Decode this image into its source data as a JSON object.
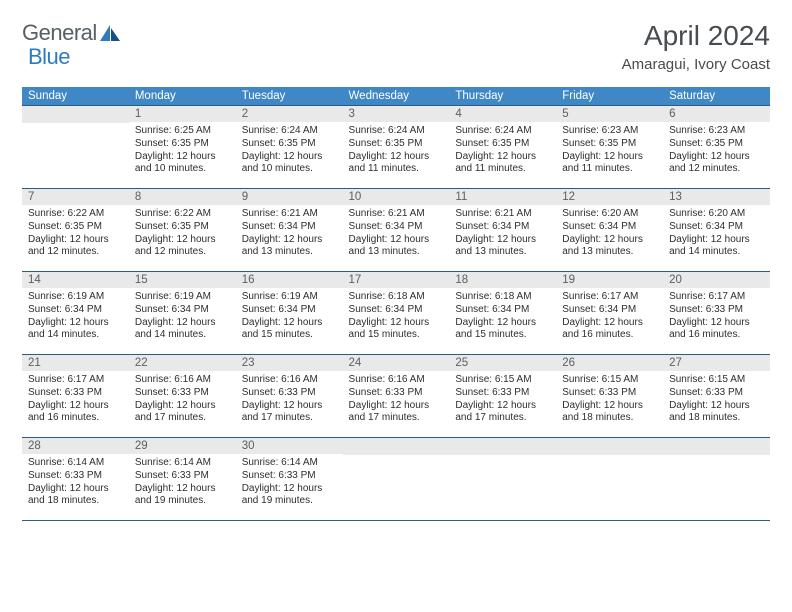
{
  "brand": {
    "word1": "General",
    "word2": "Blue"
  },
  "title": "April 2024",
  "location": "Amaragui, Ivory Coast",
  "colors": {
    "header_bg": "#3f88c5",
    "header_border": "#2a5a86",
    "daynum_bg": "#e9e9e9",
    "page_bg": "#ffffff",
    "title_color": "#474c50",
    "logo_gray": "#576064",
    "logo_blue": "#2f7bbf"
  },
  "weekdays": [
    "Sunday",
    "Monday",
    "Tuesday",
    "Wednesday",
    "Thursday",
    "Friday",
    "Saturday"
  ],
  "weeks": [
    [
      {
        "n": "",
        "sr": "",
        "ss": "",
        "dl": ""
      },
      {
        "n": "1",
        "sr": "Sunrise: 6:25 AM",
        "ss": "Sunset: 6:35 PM",
        "dl": "Daylight: 12 hours and 10 minutes."
      },
      {
        "n": "2",
        "sr": "Sunrise: 6:24 AM",
        "ss": "Sunset: 6:35 PM",
        "dl": "Daylight: 12 hours and 10 minutes."
      },
      {
        "n": "3",
        "sr": "Sunrise: 6:24 AM",
        "ss": "Sunset: 6:35 PM",
        "dl": "Daylight: 12 hours and 11 minutes."
      },
      {
        "n": "4",
        "sr": "Sunrise: 6:24 AM",
        "ss": "Sunset: 6:35 PM",
        "dl": "Daylight: 12 hours and 11 minutes."
      },
      {
        "n": "5",
        "sr": "Sunrise: 6:23 AM",
        "ss": "Sunset: 6:35 PM",
        "dl": "Daylight: 12 hours and 11 minutes."
      },
      {
        "n": "6",
        "sr": "Sunrise: 6:23 AM",
        "ss": "Sunset: 6:35 PM",
        "dl": "Daylight: 12 hours and 12 minutes."
      }
    ],
    [
      {
        "n": "7",
        "sr": "Sunrise: 6:22 AM",
        "ss": "Sunset: 6:35 PM",
        "dl": "Daylight: 12 hours and 12 minutes."
      },
      {
        "n": "8",
        "sr": "Sunrise: 6:22 AM",
        "ss": "Sunset: 6:35 PM",
        "dl": "Daylight: 12 hours and 12 minutes."
      },
      {
        "n": "9",
        "sr": "Sunrise: 6:21 AM",
        "ss": "Sunset: 6:34 PM",
        "dl": "Daylight: 12 hours and 13 minutes."
      },
      {
        "n": "10",
        "sr": "Sunrise: 6:21 AM",
        "ss": "Sunset: 6:34 PM",
        "dl": "Daylight: 12 hours and 13 minutes."
      },
      {
        "n": "11",
        "sr": "Sunrise: 6:21 AM",
        "ss": "Sunset: 6:34 PM",
        "dl": "Daylight: 12 hours and 13 minutes."
      },
      {
        "n": "12",
        "sr": "Sunrise: 6:20 AM",
        "ss": "Sunset: 6:34 PM",
        "dl": "Daylight: 12 hours and 13 minutes."
      },
      {
        "n": "13",
        "sr": "Sunrise: 6:20 AM",
        "ss": "Sunset: 6:34 PM",
        "dl": "Daylight: 12 hours and 14 minutes."
      }
    ],
    [
      {
        "n": "14",
        "sr": "Sunrise: 6:19 AM",
        "ss": "Sunset: 6:34 PM",
        "dl": "Daylight: 12 hours and 14 minutes."
      },
      {
        "n": "15",
        "sr": "Sunrise: 6:19 AM",
        "ss": "Sunset: 6:34 PM",
        "dl": "Daylight: 12 hours and 14 minutes."
      },
      {
        "n": "16",
        "sr": "Sunrise: 6:19 AM",
        "ss": "Sunset: 6:34 PM",
        "dl": "Daylight: 12 hours and 15 minutes."
      },
      {
        "n": "17",
        "sr": "Sunrise: 6:18 AM",
        "ss": "Sunset: 6:34 PM",
        "dl": "Daylight: 12 hours and 15 minutes."
      },
      {
        "n": "18",
        "sr": "Sunrise: 6:18 AM",
        "ss": "Sunset: 6:34 PM",
        "dl": "Daylight: 12 hours and 15 minutes."
      },
      {
        "n": "19",
        "sr": "Sunrise: 6:17 AM",
        "ss": "Sunset: 6:34 PM",
        "dl": "Daylight: 12 hours and 16 minutes."
      },
      {
        "n": "20",
        "sr": "Sunrise: 6:17 AM",
        "ss": "Sunset: 6:33 PM",
        "dl": "Daylight: 12 hours and 16 minutes."
      }
    ],
    [
      {
        "n": "21",
        "sr": "Sunrise: 6:17 AM",
        "ss": "Sunset: 6:33 PM",
        "dl": "Daylight: 12 hours and 16 minutes."
      },
      {
        "n": "22",
        "sr": "Sunrise: 6:16 AM",
        "ss": "Sunset: 6:33 PM",
        "dl": "Daylight: 12 hours and 17 minutes."
      },
      {
        "n": "23",
        "sr": "Sunrise: 6:16 AM",
        "ss": "Sunset: 6:33 PM",
        "dl": "Daylight: 12 hours and 17 minutes."
      },
      {
        "n": "24",
        "sr": "Sunrise: 6:16 AM",
        "ss": "Sunset: 6:33 PM",
        "dl": "Daylight: 12 hours and 17 minutes."
      },
      {
        "n": "25",
        "sr": "Sunrise: 6:15 AM",
        "ss": "Sunset: 6:33 PM",
        "dl": "Daylight: 12 hours and 17 minutes."
      },
      {
        "n": "26",
        "sr": "Sunrise: 6:15 AM",
        "ss": "Sunset: 6:33 PM",
        "dl": "Daylight: 12 hours and 18 minutes."
      },
      {
        "n": "27",
        "sr": "Sunrise: 6:15 AM",
        "ss": "Sunset: 6:33 PM",
        "dl": "Daylight: 12 hours and 18 minutes."
      }
    ],
    [
      {
        "n": "28",
        "sr": "Sunrise: 6:14 AM",
        "ss": "Sunset: 6:33 PM",
        "dl": "Daylight: 12 hours and 18 minutes."
      },
      {
        "n": "29",
        "sr": "Sunrise: 6:14 AM",
        "ss": "Sunset: 6:33 PM",
        "dl": "Daylight: 12 hours and 19 minutes."
      },
      {
        "n": "30",
        "sr": "Sunrise: 6:14 AM",
        "ss": "Sunset: 6:33 PM",
        "dl": "Daylight: 12 hours and 19 minutes."
      },
      {
        "n": "",
        "sr": "",
        "ss": "",
        "dl": ""
      },
      {
        "n": "",
        "sr": "",
        "ss": "",
        "dl": ""
      },
      {
        "n": "",
        "sr": "",
        "ss": "",
        "dl": ""
      },
      {
        "n": "",
        "sr": "",
        "ss": "",
        "dl": ""
      }
    ]
  ]
}
